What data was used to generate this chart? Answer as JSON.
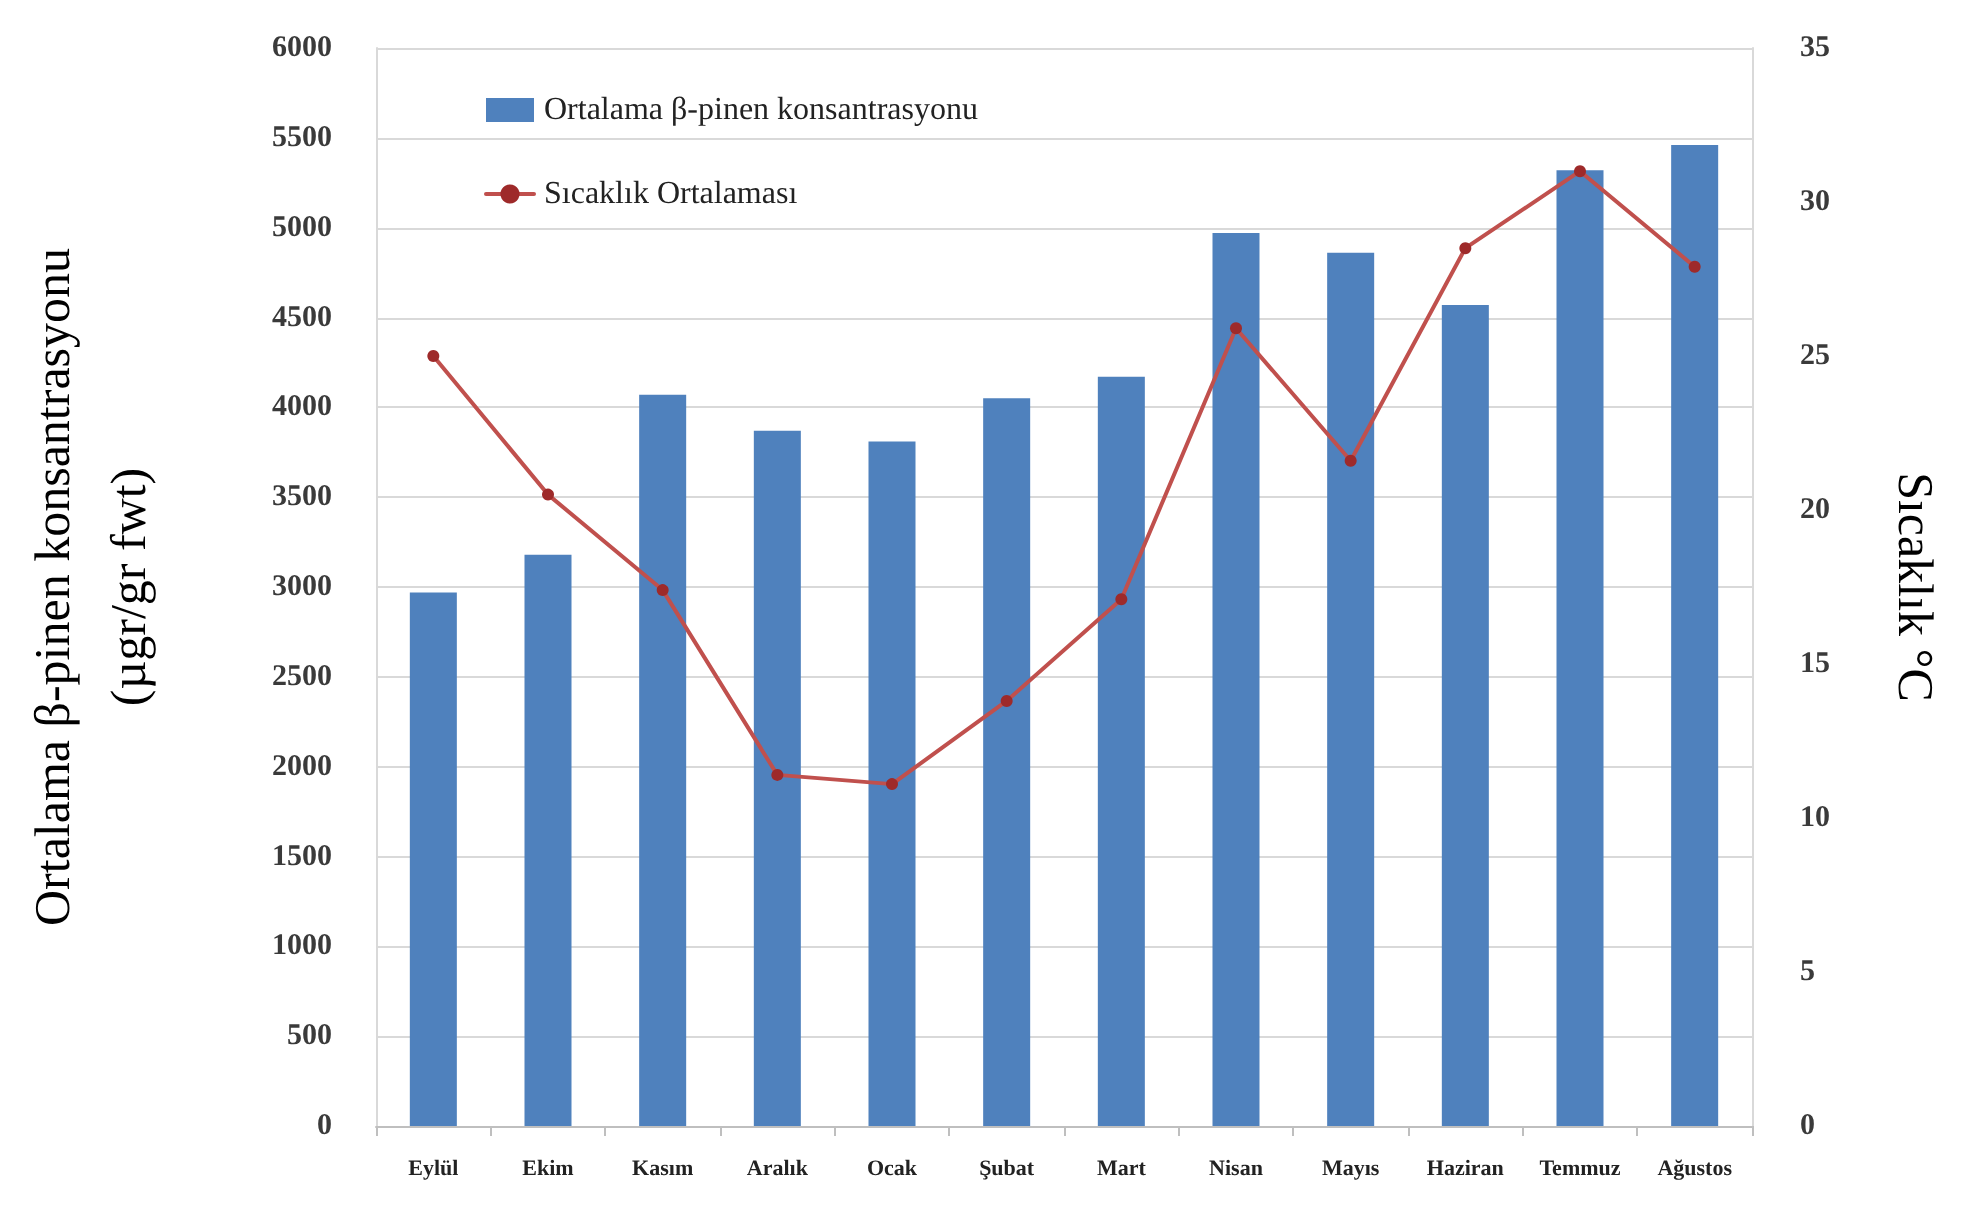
{
  "chart_data": {
    "type": "bar",
    "categories": [
      "Eylül",
      "Ekim",
      "Kasım",
      "Aralık",
      "Ocak",
      "Şubat",
      "Mart",
      "Nisan",
      "Mayıs",
      "Haziran",
      "Temmuz",
      "Ağustos"
    ],
    "series": [
      {
        "name": "Ortalama β-pinen konsantrasyonu",
        "color": "#4f81bd",
        "values": [
          2970,
          3180,
          4070,
          3870,
          3810,
          4050,
          4170,
          4970,
          4860,
          4570,
          5320,
          5460
        ]
      },
      {
        "name": "Sıcaklık Ortalaması",
        "type": "line",
        "axis": "y2",
        "color": "#c0504d",
        "values": [
          25.0,
          20.5,
          17.4,
          11.4,
          11.1,
          13.8,
          17.1,
          25.9,
          21.6,
          28.5,
          31.0,
          27.9
        ]
      }
    ],
    "ylabel": "Ortalama β-pinen konsantrasyonu\n(µgr/gr fwt)",
    "y2label": "Sıcaklık °C",
    "ylim": [
      0,
      6000
    ],
    "yticks": [
      0,
      500,
      1000,
      1500,
      2000,
      2500,
      3000,
      3500,
      4000,
      4500,
      5000,
      5500,
      6000
    ],
    "y2lim": [
      0,
      35
    ],
    "y2ticks": [
      0,
      5,
      10,
      15,
      20,
      25,
      30,
      35
    ],
    "grid": "y",
    "legend": "top left",
    "marker": "circle",
    "line_style": "solid"
  }
}
